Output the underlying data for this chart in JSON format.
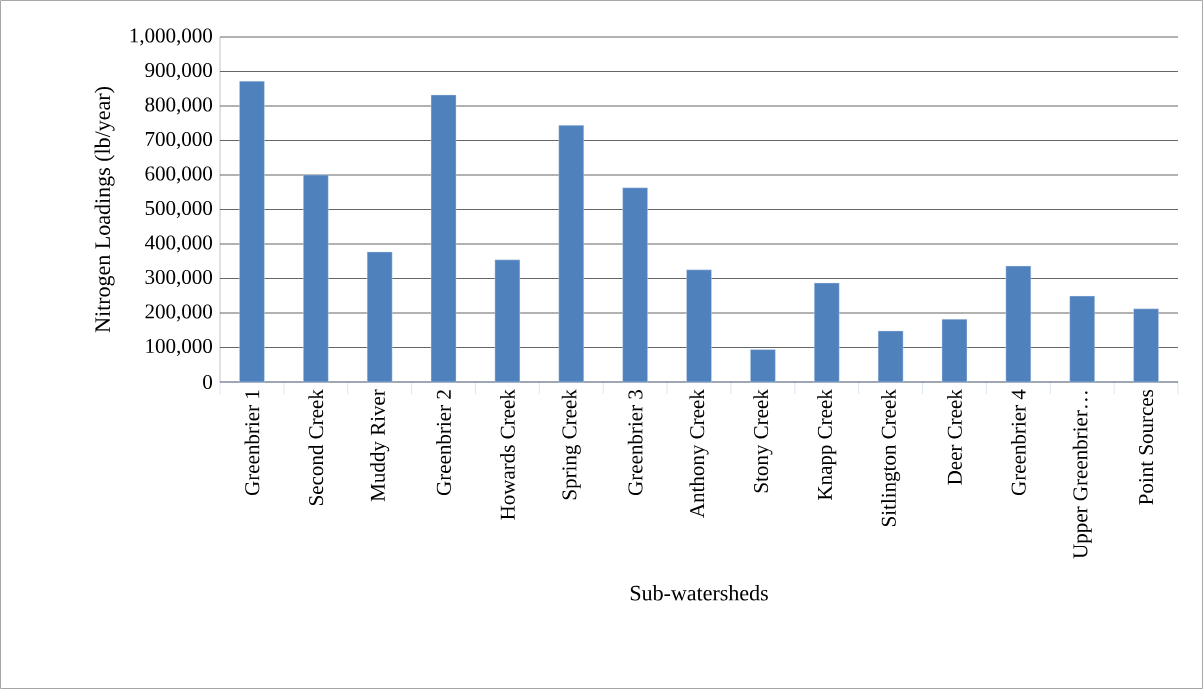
{
  "chart_data": {
    "type": "bar",
    "xlabel": "Sub-watersheds",
    "ylabel": "Nitrogen Loadings (lb/year)",
    "categories": [
      "Greenbrier 1",
      "Second Creek",
      "Muddy River",
      "Greenbrier 2",
      "Howards Creek",
      "Spring Creek",
      "Greenbrier 3",
      "Anthony Creek",
      "Stony Creek",
      "Knapp Creek",
      "Sitlington Creek",
      "Deer Creek",
      "Greenbrier 4",
      "Upper Greenbrier…",
      "Point Sources"
    ],
    "values": [
      872000,
      600000,
      377000,
      832000,
      354000,
      744000,
      563000,
      325000,
      94000,
      287000,
      148000,
      182000,
      336000,
      249000,
      212000
    ],
    "color": "#4f81bd",
    "ylim": [
      0,
      1000000
    ],
    "yticks": [
      {
        "value": 0,
        "label": "0"
      },
      {
        "value": 100000,
        "label": "100,000"
      },
      {
        "value": 200000,
        "label": "200,000"
      },
      {
        "value": 300000,
        "label": "300,000"
      },
      {
        "value": 400000,
        "label": "400,000"
      },
      {
        "value": 500000,
        "label": "500,000"
      },
      {
        "value": 600000,
        "label": "600,000"
      },
      {
        "value": 700000,
        "label": "700,000"
      },
      {
        "value": 800000,
        "label": "800,000"
      },
      {
        "value": 900000,
        "label": "900,000"
      },
      {
        "value": 1000000,
        "label": "1,000,000"
      }
    ],
    "grid": "y"
  }
}
